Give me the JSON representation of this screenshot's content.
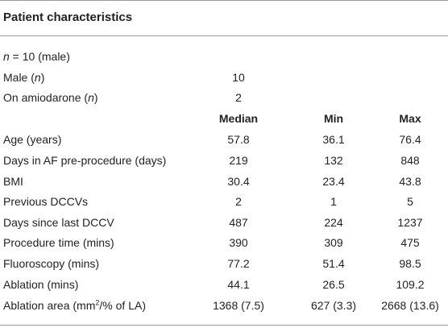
{
  "table": {
    "title": "Patient characteristics",
    "intro_rows": [
      {
        "label": [
          {
            "text": "n",
            "style": "italic"
          },
          {
            "text": " = 10 (male)"
          }
        ]
      },
      {
        "label": [
          {
            "text": "Male ("
          },
          {
            "text": "n",
            "style": "italic"
          },
          {
            "text": ")"
          }
        ],
        "value": "10"
      },
      {
        "label": [
          {
            "text": "On amiodarone ("
          },
          {
            "text": "n",
            "style": "italic"
          },
          {
            "text": ")"
          }
        ],
        "value": "2"
      }
    ],
    "columns": [
      "Median",
      "Min",
      "Max"
    ],
    "rows": [
      {
        "label": [
          {
            "text": "Age (years)"
          }
        ],
        "values": [
          "57.8",
          "36.1",
          "76.4"
        ]
      },
      {
        "label": [
          {
            "text": "Days in AF pre-procedure (days)"
          }
        ],
        "values": [
          "219",
          "132",
          "848"
        ]
      },
      {
        "label": [
          {
            "text": "BMI"
          }
        ],
        "values": [
          "30.4",
          "23.4",
          "43.8"
        ]
      },
      {
        "label": [
          {
            "text": "Previous DCCVs"
          }
        ],
        "values": [
          "2",
          "1",
          "5"
        ]
      },
      {
        "label": [
          {
            "text": "Days since last DCCV"
          }
        ],
        "values": [
          "487",
          "224",
          "1237"
        ]
      },
      {
        "label": [
          {
            "text": "Procedure time (mins)"
          }
        ],
        "values": [
          "390",
          "309",
          "475"
        ]
      },
      {
        "label": [
          {
            "text": "Fluoroscopy (mins)"
          }
        ],
        "values": [
          "77.2",
          "51.4",
          "98.5"
        ]
      },
      {
        "label": [
          {
            "text": "Ablation (mins)"
          }
        ],
        "values": [
          "44.1",
          "26.5",
          "109.2"
        ]
      },
      {
        "label": [
          {
            "text": "Ablation area (mm"
          },
          {
            "text": "2",
            "style": "sup"
          },
          {
            "text": "/% of LA)"
          }
        ],
        "values": [
          "1368 (7.5)",
          "627 (3.3)",
          "2668 (13.6)"
        ]
      }
    ]
  }
}
